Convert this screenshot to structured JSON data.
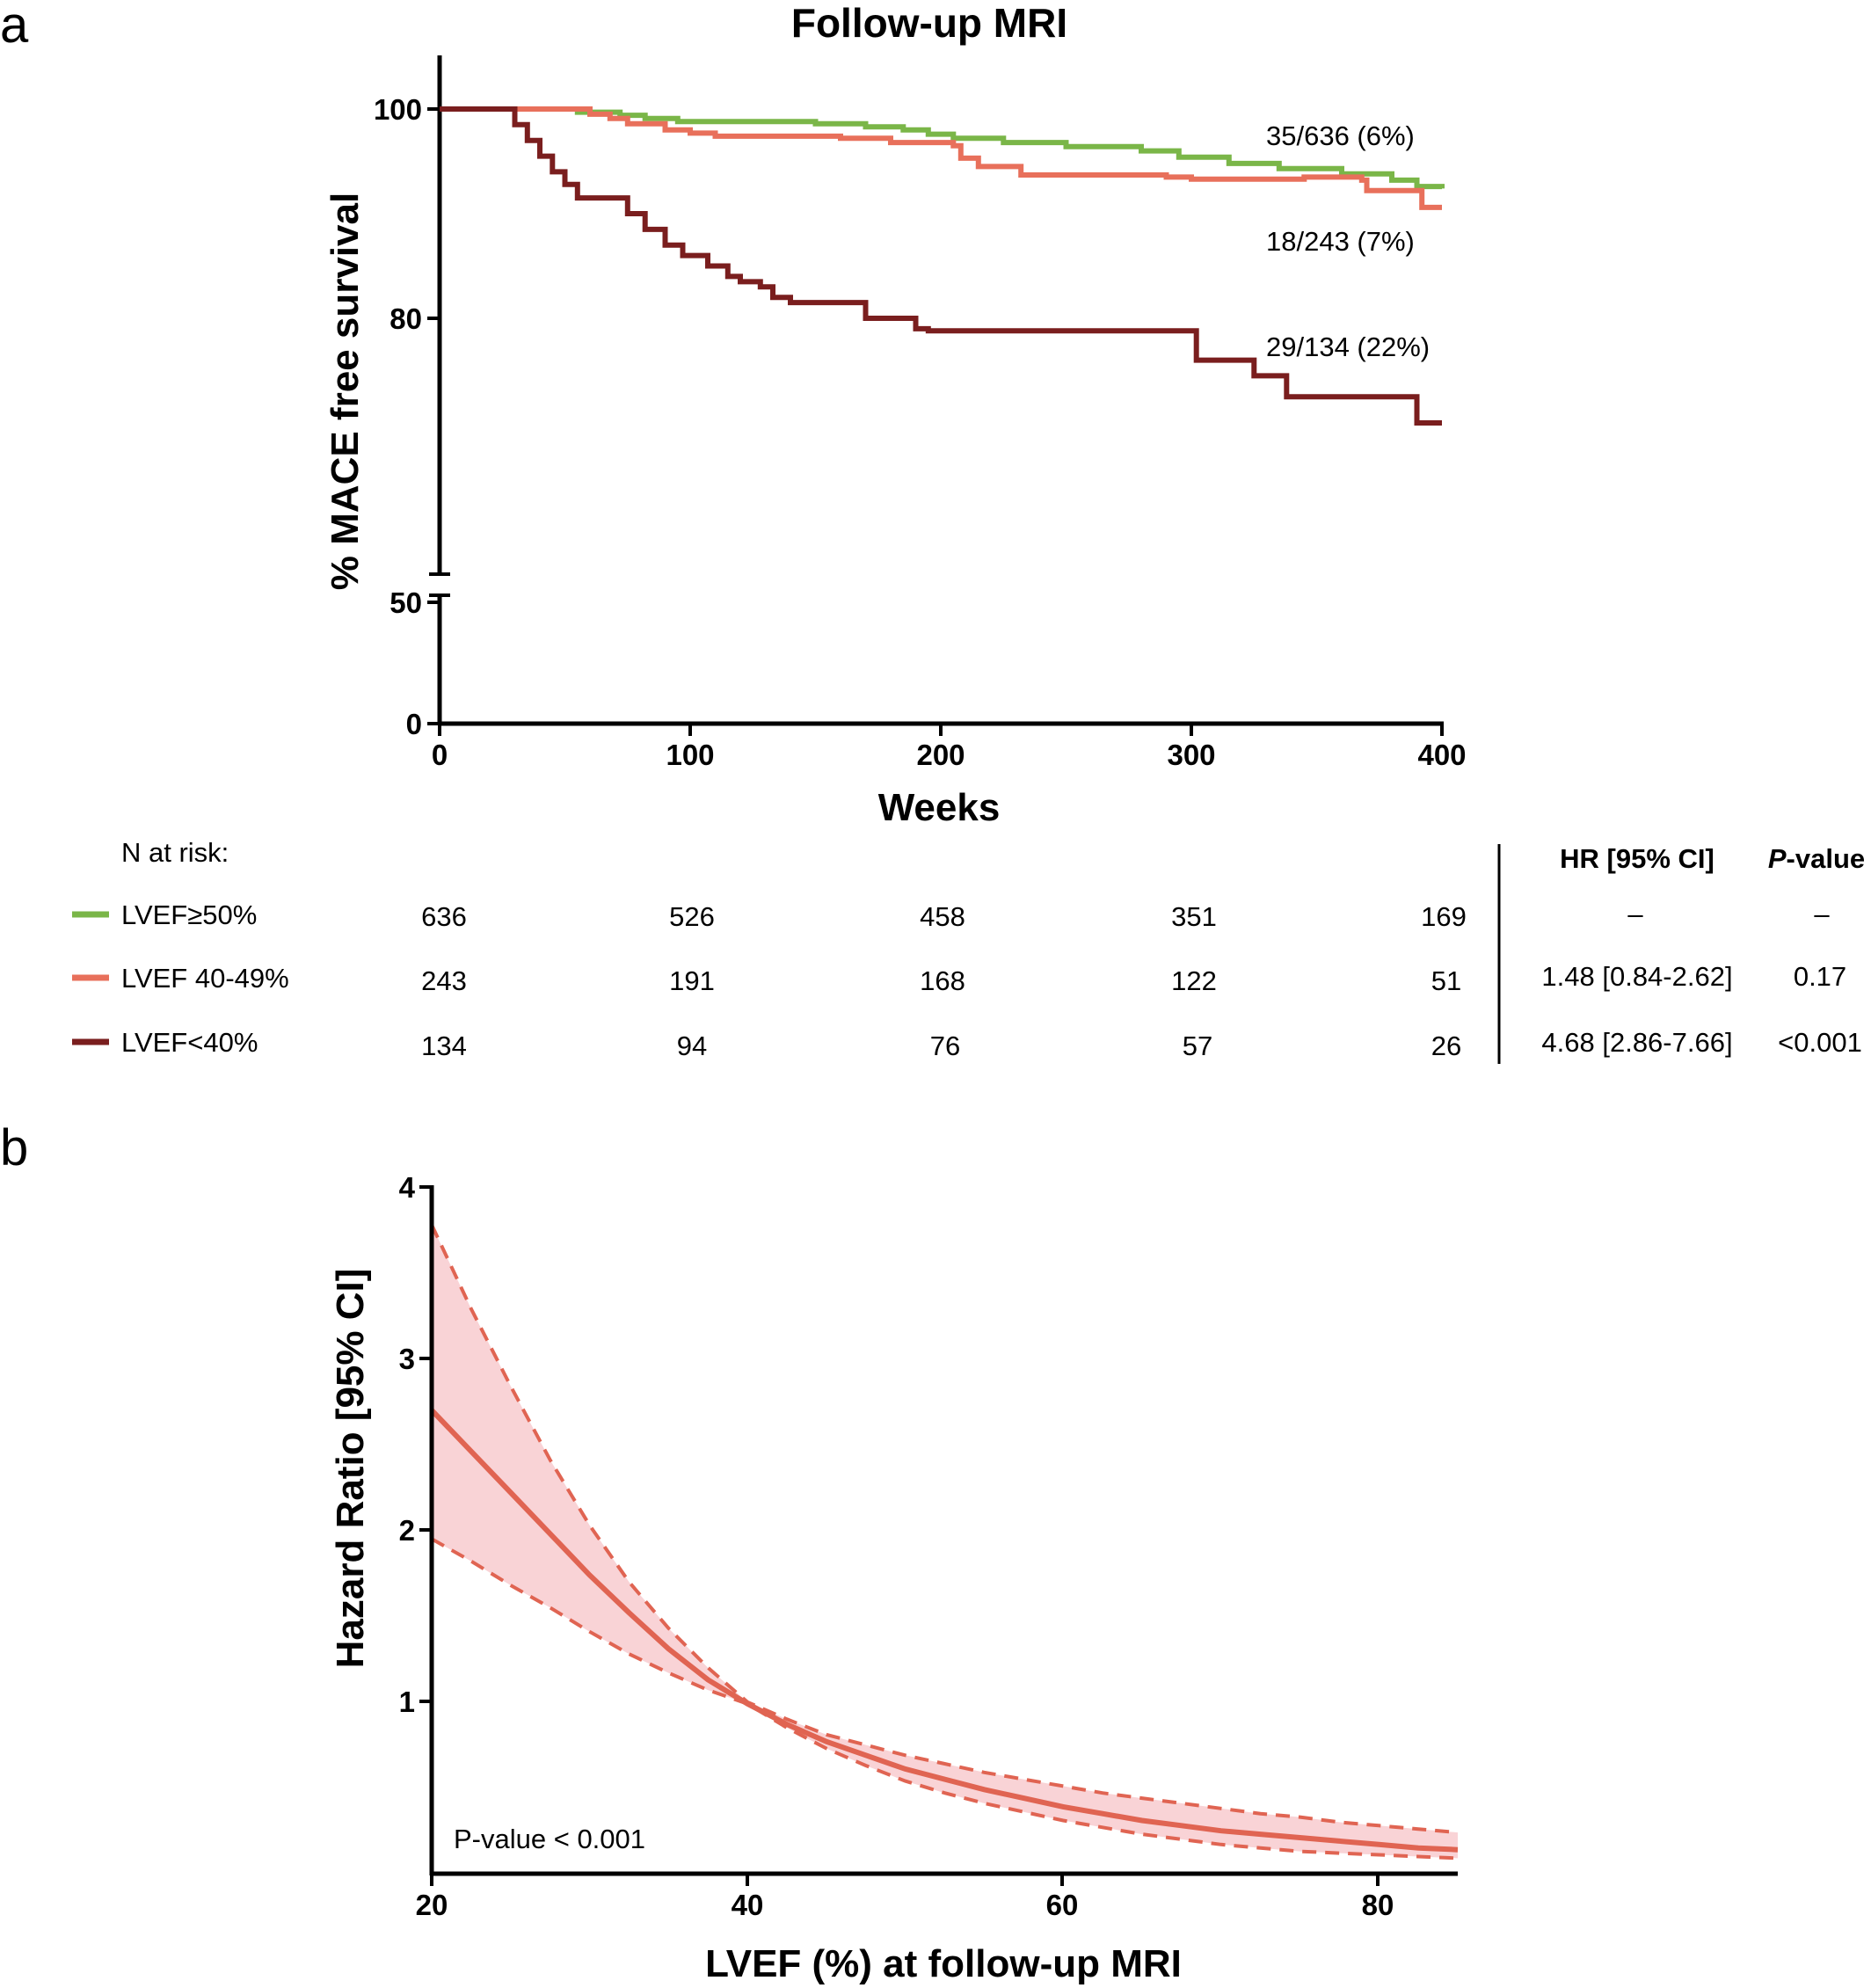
{
  "chart_data": [
    {
      "type": "line",
      "panel_label": "a",
      "title": "Follow-up MRI",
      "xlabel": "Weeks",
      "ylabel": "% MACE free survival",
      "xlim": [
        0,
        400
      ],
      "x_ticks": [
        "0",
        "100",
        "200",
        "300",
        "400"
      ],
      "y_ticks": [
        "0",
        "50",
        "80",
        "100"
      ],
      "y_axis_break": "between 50 and the upper segment (50 to 105)",
      "series": [
        {
          "name": "LVEF≥50%",
          "color": "#7ab648",
          "annotation": "35/636 (6%)",
          "x": [
            0,
            50,
            55,
            72,
            82,
            95,
            150,
            170,
            185,
            195,
            205,
            225,
            250,
            280,
            295,
            315,
            335,
            360,
            380,
            390,
            400
          ],
          "y": [
            100,
            100,
            99.7,
            99.4,
            99.1,
            98.8,
            98.6,
            98.3,
            98.0,
            97.6,
            97.2,
            96.8,
            96.4,
            96.0,
            95.4,
            94.8,
            94.3,
            93.8,
            93.2,
            92.6,
            92.4
          ]
        },
        {
          "name": "LVEF 40-49%",
          "color": "#e8705b",
          "annotation": "18/243 (7%)",
          "x": [
            0,
            50,
            60,
            68,
            75,
            90,
            100,
            110,
            160,
            180,
            205,
            208,
            215,
            232,
            290,
            300,
            345,
            368,
            370,
            390,
            392,
            400
          ],
          "y": [
            100,
            100,
            99.5,
            99.1,
            98.6,
            98.0,
            97.7,
            97.4,
            97.2,
            96.8,
            96.5,
            95.3,
            94.5,
            93.7,
            93.5,
            93.3,
            93.5,
            93.2,
            92.2,
            92.2,
            90.6,
            90.6
          ]
        },
        {
          "name": "LVEF<40%",
          "color": "#7a1e1e",
          "annotation": "29/134 (22%)",
          "x": [
            0,
            25,
            30,
            35,
            40,
            45,
            50,
            55,
            75,
            82,
            90,
            97,
            107,
            115,
            120,
            128,
            133,
            140,
            150,
            170,
            190,
            195,
            210,
            295,
            302,
            325,
            338,
            390,
            400
          ],
          "y": [
            100,
            100,
            98.5,
            97.0,
            95.5,
            94.0,
            92.8,
            91.5,
            90.0,
            88.5,
            87.0,
            86.0,
            85.0,
            84.0,
            83.5,
            83.0,
            82.0,
            81.5,
            81.5,
            80.0,
            79.0,
            78.8,
            78.8,
            78.8,
            76.0,
            74.5,
            72.5,
            70.0,
            70.0
          ]
        }
      ],
      "risk_table": {
        "heading": "N at risk:",
        "columns_x": [
          0,
          100,
          200,
          300,
          400
        ],
        "rows": [
          {
            "label": "LVEF≥50%",
            "color": "#7ab648",
            "counts": [
              "636",
              "526",
              "458",
              "351",
              "169"
            ],
            "hr": "–",
            "p": "–"
          },
          {
            "label": "LVEF 40-49%",
            "color": "#e8705b",
            "counts": [
              "243",
              "191",
              "168",
              "122",
              "51"
            ],
            "hr": "1.48 [0.84-2.62]",
            "p": "0.17"
          },
          {
            "label": "LVEF<40%",
            "color": "#7a1e1e",
            "counts": [
              "134",
              "94",
              "76",
              "57",
              "26"
            ],
            "hr": "4.68 [2.86-7.66]",
            "p": "<0.001"
          }
        ],
        "hr_header": "HR [95% CI]",
        "p_header_italic": "P",
        "p_header_rest": "-value"
      }
    },
    {
      "type": "area",
      "panel_label": "b",
      "xlabel": "LVEF (%) at follow-up MRI",
      "ylabel": "Hazard Ratio [95% CI]",
      "xlim": [
        20,
        85
      ],
      "ylim": [
        0,
        4
      ],
      "x_ticks": [
        "20",
        "40",
        "60",
        "80"
      ],
      "y_ticks": [
        "1",
        "2",
        "3",
        "4"
      ],
      "annotation": "P-value < 0.001",
      "color": "#e06452",
      "band_color": "#f9d3d6",
      "x": [
        20,
        22.5,
        25,
        27.5,
        30,
        32.5,
        35,
        37.5,
        40,
        42.5,
        45,
        47.5,
        50,
        52.5,
        55,
        57.5,
        60,
        62.5,
        65,
        67.5,
        70,
        72.5,
        75,
        77.5,
        80,
        82.5,
        85
      ],
      "hr": [
        2.7,
        2.46,
        2.22,
        1.98,
        1.74,
        1.52,
        1.31,
        1.13,
        0.99,
        0.87,
        0.77,
        0.69,
        0.61,
        0.55,
        0.49,
        0.44,
        0.39,
        0.35,
        0.31,
        0.28,
        0.25,
        0.23,
        0.21,
        0.19,
        0.17,
        0.15,
        0.14
      ],
      "lower": [
        1.95,
        1.82,
        1.68,
        1.55,
        1.41,
        1.28,
        1.17,
        1.07,
        0.99,
        0.85,
        0.73,
        0.63,
        0.54,
        0.47,
        0.41,
        0.36,
        0.31,
        0.27,
        0.23,
        0.2,
        0.17,
        0.15,
        0.13,
        0.12,
        0.11,
        0.1,
        0.09
      ],
      "upper": [
        3.78,
        3.29,
        2.84,
        2.41,
        2.03,
        1.7,
        1.43,
        1.2,
        1.0,
        0.9,
        0.81,
        0.75,
        0.69,
        0.64,
        0.59,
        0.55,
        0.51,
        0.47,
        0.44,
        0.41,
        0.38,
        0.35,
        0.33,
        0.3,
        0.28,
        0.26,
        0.24
      ]
    }
  ]
}
